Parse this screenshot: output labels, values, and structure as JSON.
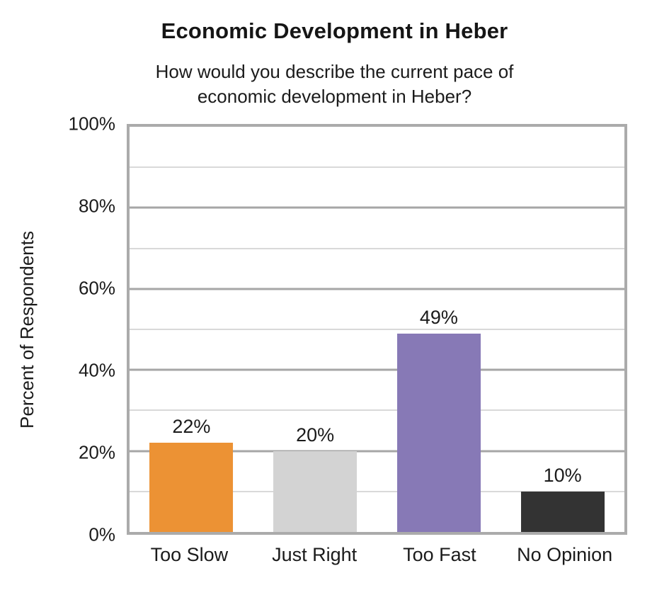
{
  "title": "Economic Development in Heber",
  "subtitle": {
    "line1": "How would you describe the current pace of",
    "line2": "economic development in Heber?"
  },
  "chart_data": {
    "type": "bar",
    "title": "Economic Development in Heber",
    "subtitle": "How would you describe the current pace of economic development in Heber?",
    "categories": [
      "Too Slow",
      "Just Right",
      "Too Fast",
      "No Opinion"
    ],
    "values": [
      22,
      20,
      49,
      10
    ],
    "value_labels": [
      "22%",
      "20%",
      "49%",
      "10%"
    ],
    "bar_colors": [
      "#ec9234",
      "#d3d3d3",
      "#8779b6",
      "#333333"
    ],
    "xlabel": "",
    "ylabel": "Percent of Respondents",
    "ylim": [
      0,
      100
    ],
    "yticks": [
      0,
      20,
      40,
      60,
      80,
      100
    ],
    "ytick_labels": [
      "0%",
      "20%",
      "40%",
      "60%",
      "80%",
      "100%"
    ],
    "minor_grid_step": 10,
    "major_grid_step": 20,
    "grid": true,
    "legend": false
  },
  "colors": {
    "gridline_minor": "#d9d9d9",
    "gridline_major": "#a6a6a6",
    "axis_border": "#ababab",
    "text": "#1b1b1b",
    "background": "#ffffff"
  }
}
